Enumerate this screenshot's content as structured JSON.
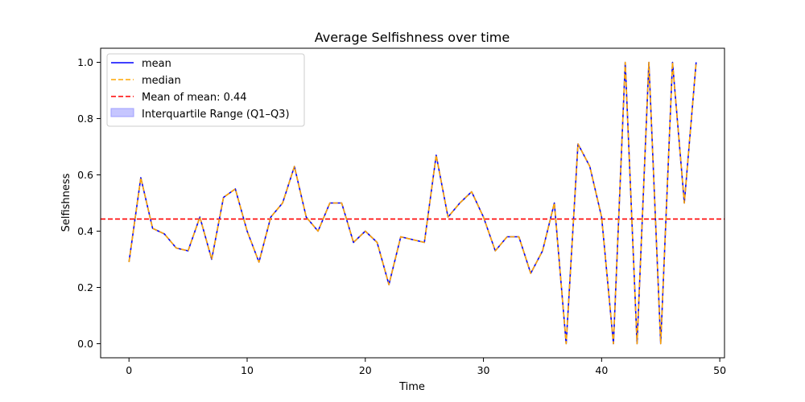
{
  "chart_data": {
    "type": "line",
    "title": "Average Selfishness over time",
    "xlabel": "Time",
    "ylabel": "Selfishness",
    "xlim": [
      -2.4,
      50.4
    ],
    "ylim": [
      -0.05,
      1.05
    ],
    "x_ticks": [
      0,
      10,
      20,
      30,
      40,
      50
    ],
    "y_ticks": [
      0.0,
      0.2,
      0.4,
      0.6,
      0.8,
      1.0
    ],
    "x_tick_labels": [
      "0",
      "10",
      "20",
      "30",
      "40",
      "50"
    ],
    "y_tick_labels": [
      "0.0",
      "0.2",
      "0.4",
      "0.6",
      "0.8",
      "1.0"
    ],
    "grid": false,
    "legend_position": "upper-left",
    "x": [
      0,
      1,
      2,
      3,
      4,
      5,
      6,
      7,
      8,
      9,
      10,
      11,
      12,
      13,
      14,
      15,
      16,
      17,
      18,
      19,
      20,
      21,
      22,
      23,
      24,
      25,
      26,
      27,
      28,
      29,
      30,
      31,
      32,
      33,
      34,
      35,
      36,
      37,
      38,
      39,
      40,
      41,
      42,
      43,
      44,
      45,
      46,
      47,
      48
    ],
    "series": [
      {
        "name": "mean",
        "color": "#0000ff",
        "style": "solid",
        "values": [
          0.29,
          0.59,
          0.41,
          0.39,
          0.34,
          0.33,
          0.45,
          0.3,
          0.52,
          0.55,
          0.4,
          0.29,
          0.45,
          0.5,
          0.63,
          0.45,
          0.4,
          0.5,
          0.5,
          0.36,
          0.4,
          0.36,
          0.21,
          0.38,
          0.37,
          0.36,
          0.67,
          0.45,
          0.5,
          0.54,
          0.45,
          0.33,
          0.38,
          0.38,
          0.25,
          0.33,
          0.5,
          0.0,
          0.71,
          0.63,
          0.45,
          0.0,
          1.0,
          0.0,
          1.0,
          0.0,
          1.0,
          0.5,
          1.0
        ]
      },
      {
        "name": "median",
        "color": "#ffa500",
        "style": "dashed",
        "values": [
          0.29,
          0.59,
          0.41,
          0.39,
          0.34,
          0.33,
          0.45,
          0.3,
          0.52,
          0.55,
          0.4,
          0.29,
          0.45,
          0.5,
          0.63,
          0.45,
          0.4,
          0.5,
          0.5,
          0.36,
          0.4,
          0.36,
          0.21,
          0.38,
          0.37,
          0.36,
          0.67,
          0.45,
          0.5,
          0.54,
          0.45,
          0.33,
          0.38,
          0.38,
          0.25,
          0.33,
          0.5,
          0.0,
          0.71,
          0.63,
          0.45,
          0.0,
          1.0,
          0.0,
          1.0,
          0.0,
          1.0,
          0.5,
          1.0
        ]
      }
    ],
    "mean_of_mean": {
      "name": "Mean of mean: 0.44",
      "value": 0.443,
      "color": "#ff0000",
      "style": "dashed"
    },
    "band": {
      "name": "Interquartile Range (Q1–Q3)",
      "color": "#c6c6ff",
      "edge_color": "#9f9fff"
    }
  }
}
